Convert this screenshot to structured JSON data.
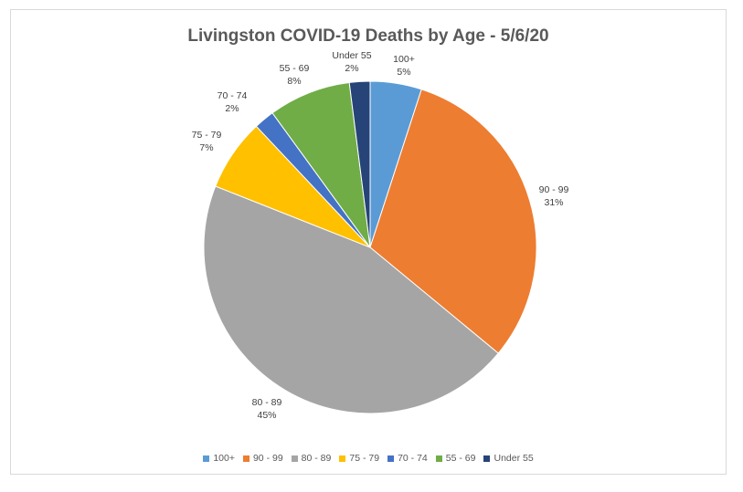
{
  "chart_data": {
    "type": "pie",
    "title": "Livingston COVID-19 Deaths by Age - 5/6/20",
    "legend_position": "bottom",
    "slices": [
      {
        "label": "100+",
        "value": 5,
        "display": "5%",
        "color": "#5b9bd5"
      },
      {
        "label": "90 - 99",
        "value": 31,
        "display": "31%",
        "color": "#ed7d31"
      },
      {
        "label": "80 - 89",
        "value": 45,
        "display": "45%",
        "color": "#a5a5a5"
      },
      {
        "label": "75 - 79",
        "value": 7,
        "display": "7%",
        "color": "#ffc000"
      },
      {
        "label": "70 - 74",
        "value": 2,
        "display": "2%",
        "color": "#4472c4"
      },
      {
        "label": "55 - 69",
        "value": 8,
        "display": "8%",
        "color": "#70ad47"
      },
      {
        "label": "Under 55",
        "value": 2,
        "display": "2%",
        "color": "#264478"
      }
    ]
  }
}
